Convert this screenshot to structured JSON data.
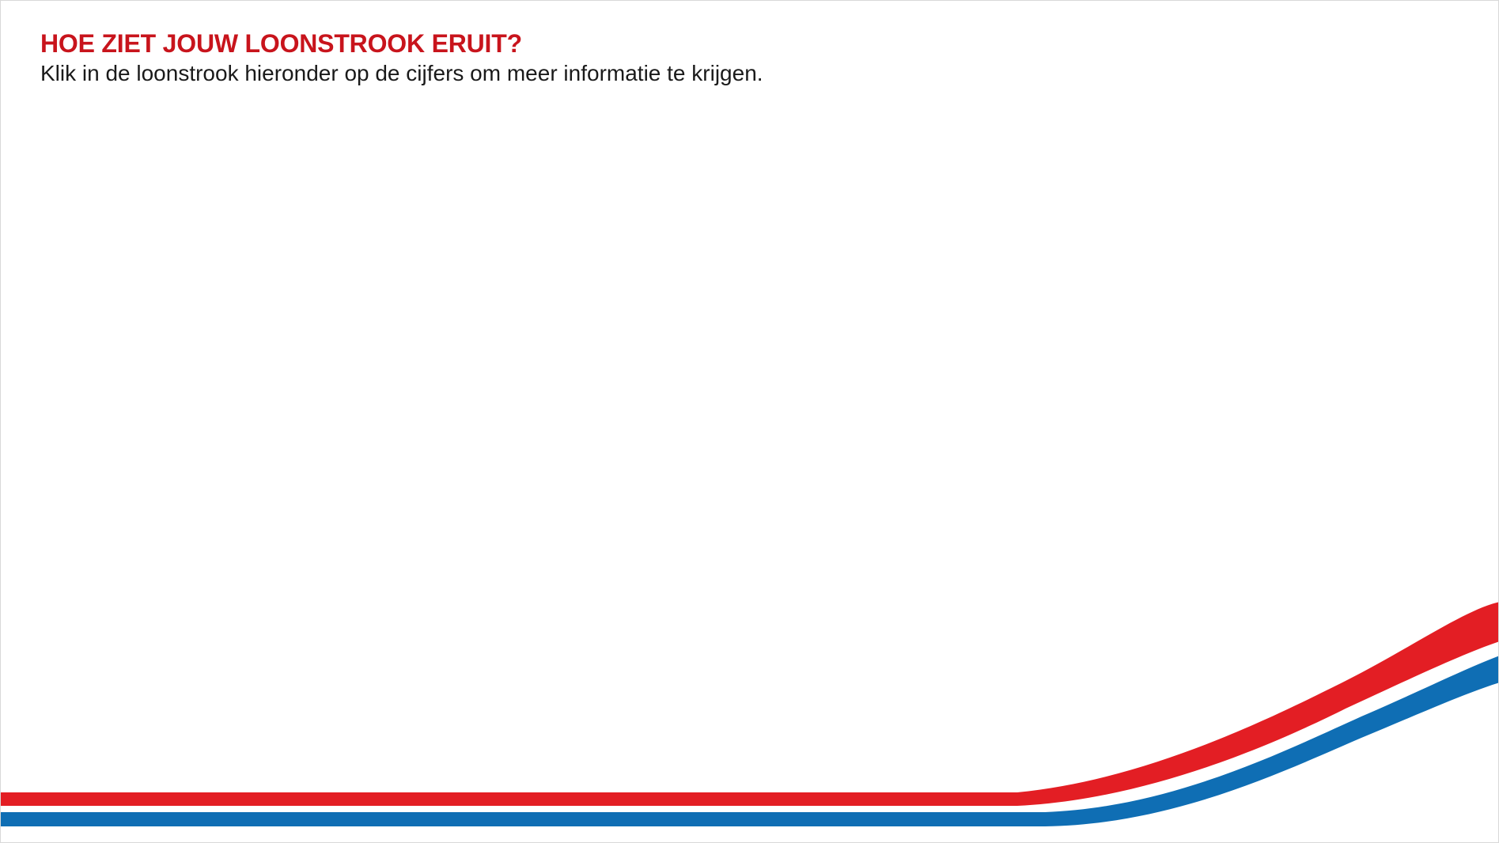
{
  "header": {
    "title": "HOE ZIET JOUW LOONSTROOK ERUIT?",
    "subtitle": "Klik in de loonstrook hieronder op de cijfers om meer informatie te krijgen."
  },
  "colors": {
    "accent_red": "#c8141c",
    "stripe_red": "#e31e24",
    "stripe_blue": "#0f6eb4",
    "background": "#ffffff"
  }
}
